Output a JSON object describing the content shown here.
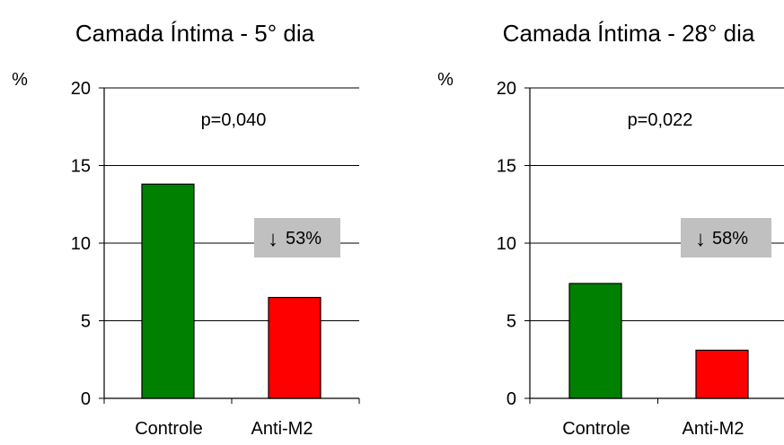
{
  "chart_data": [
    {
      "type": "bar",
      "title": "Camada Íntima - 5° dia",
      "ylabel": "%",
      "ylim": [
        0,
        20
      ],
      "yticks": [
        0,
        5,
        10,
        15,
        20
      ],
      "grid": true,
      "categories": [
        "Controle",
        "Anti-M2"
      ],
      "values": [
        13.8,
        6.5
      ],
      "colors": [
        "#008000",
        "#ff0000"
      ],
      "annotation": "p=0,040",
      "badge": {
        "arrow": "↓",
        "text": "53%",
        "color": "#c0c0c0"
      }
    },
    {
      "type": "bar",
      "title": "Camada Íntima - 28° dia",
      "ylabel": "%",
      "ylim": [
        0,
        20
      ],
      "yticks": [
        0,
        5,
        10,
        15,
        20
      ],
      "grid": true,
      "categories": [
        "Controle",
        "Anti-M2"
      ],
      "values": [
        7.4,
        3.1
      ],
      "colors": [
        "#008000",
        "#ff0000"
      ],
      "annotation": "p=0,022",
      "badge": {
        "arrow": "↓",
        "text": "58%",
        "color": "#c0c0c0"
      }
    }
  ]
}
